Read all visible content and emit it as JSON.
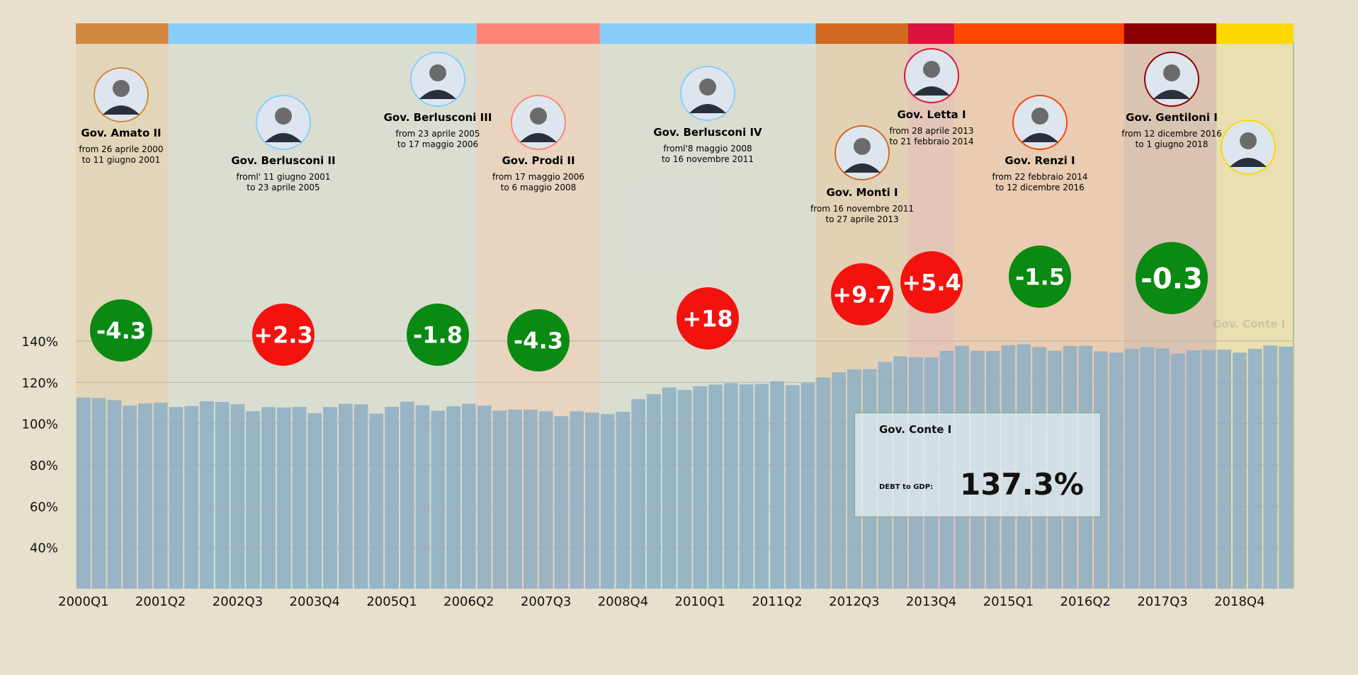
{
  "chart_data": {
    "type": "bar",
    "ylim": [
      20,
      150
    ],
    "yticks": [
      40,
      60,
      80,
      100,
      120,
      140
    ],
    "ytick_labels": [
      "40%",
      "60%",
      "80%",
      "100%",
      "120%",
      "140%"
    ],
    "xtick_labels": [
      "2000Q1",
      "2001Q2",
      "2002Q3",
      "2003Q4",
      "2005Q1",
      "2006Q2",
      "2007Q3",
      "2008Q4",
      "2010Q1",
      "2011Q2",
      "2012Q3",
      "2013Q4",
      "2015Q1",
      "2016Q2",
      "2017Q3",
      "2018Q4"
    ],
    "categories": [
      "2000Q1",
      "2000Q2",
      "2000Q3",
      "2000Q4",
      "2001Q1",
      "2001Q2",
      "2001Q3",
      "2001Q4",
      "2002Q1",
      "2002Q2",
      "2002Q3",
      "2002Q4",
      "2003Q1",
      "2003Q2",
      "2003Q3",
      "2003Q4",
      "2004Q1",
      "2004Q2",
      "2004Q3",
      "2004Q4",
      "2005Q1",
      "2005Q2",
      "2005Q3",
      "2005Q4",
      "2006Q1",
      "2006Q2",
      "2006Q3",
      "2006Q4",
      "2007Q1",
      "2007Q2",
      "2007Q3",
      "2007Q4",
      "2008Q1",
      "2008Q2",
      "2008Q3",
      "2008Q4",
      "2009Q1",
      "2009Q2",
      "2009Q3",
      "2009Q4",
      "2010Q1",
      "2010Q2",
      "2010Q3",
      "2010Q4",
      "2011Q1",
      "2011Q2",
      "2011Q3",
      "2011Q4",
      "2012Q1",
      "2012Q2",
      "2012Q3",
      "2012Q4",
      "2013Q1",
      "2013Q2",
      "2013Q3",
      "2013Q4",
      "2014Q1",
      "2014Q2",
      "2014Q3",
      "2014Q4",
      "2015Q1",
      "2015Q2",
      "2015Q3",
      "2015Q4",
      "2016Q1",
      "2016Q2",
      "2016Q3",
      "2016Q4",
      "2017Q1",
      "2017Q2",
      "2017Q3",
      "2017Q4",
      "2018Q1",
      "2018Q2",
      "2018Q3",
      "2018Q4",
      "2019Q1",
      "2019Q2",
      "2019Q3"
    ],
    "values": [
      112.6,
      112.4,
      111.4,
      108.7,
      109.8,
      110.1,
      108.0,
      108.5,
      110.8,
      110.5,
      109.4,
      106.0,
      108.0,
      107.8,
      108.1,
      105.1,
      108.0,
      109.6,
      109.3,
      104.8,
      108.1,
      110.6,
      108.9,
      106.2,
      108.4,
      109.6,
      108.7,
      106.3,
      106.8,
      106.8,
      105.9,
      103.6,
      105.9,
      105.3,
      104.6,
      105.7,
      111.8,
      114.3,
      117.5,
      116.3,
      118.1,
      118.9,
      119.6,
      119.0,
      119.2,
      120.5,
      118.6,
      119.7,
      122.4,
      124.9,
      126.3,
      126.4,
      129.9,
      132.6,
      132.2,
      132.1,
      135.2,
      137.7,
      135.3,
      135.2,
      138.0,
      138.4,
      137.1,
      135.3,
      137.6,
      137.7,
      135.0,
      134.4,
      136.2,
      137.1,
      136.4,
      133.9,
      135.5,
      135.7,
      135.8,
      134.4,
      136.2,
      137.8,
      137.3
    ],
    "bar_color": "#93b1c4"
  },
  "governments": [
    {
      "name": "Gov. Amato II",
      "from": "from 26 aprile 2000",
      "to": "to 11 giugno 2001",
      "start": 0,
      "end": 6,
      "color": "#d3883f",
      "delta": "-4.3",
      "delta_color": "#0a8a12"
    },
    {
      "name": "Gov. Berlusconi II",
      "from": "froml' 11 giugno 2001",
      "to": "to 23 aprile 2005",
      "start": 6,
      "end": 20,
      "color": "#87cefa",
      "delta": "+2.3",
      "delta_color": "#f4120e"
    },
    {
      "name": "Gov. Berlusconi III",
      "from": "from 23 aprile 2005",
      "to": "to 17 maggio 2006",
      "start": 20,
      "end": 26,
      "color": "#87cefa",
      "delta": "-1.8",
      "delta_color": "#0a8a12"
    },
    {
      "name": "Gov. Prodi II",
      "from": "from 17 maggio 2006",
      "to": "to 6 maggio 2008",
      "start": 26,
      "end": 34,
      "color": "#fc8577",
      "delta": "-4.3",
      "delta_color": "#0a8a12"
    },
    {
      "name": "Gov. Berlusconi IV",
      "from": "froml'8 maggio 2008",
      "to": "to 16 novembre 2011",
      "start": 34,
      "end": 48,
      "color": "#87cefa",
      "delta": "+18",
      "delta_color": "#f4120e"
    },
    {
      "name": "Gov. Monti I",
      "from": "from 16 novembre 2011",
      "to": "to 27 aprile 2013",
      "start": 48,
      "end": 54,
      "color": "#d2691e",
      "delta": "+9.7",
      "delta_color": "#f4120e"
    },
    {
      "name": "Gov. Letta I",
      "from": "from 28 aprile 2013",
      "to": "to 21 febbraio 2014",
      "start": 54,
      "end": 57,
      "color": "#dc143c",
      "delta": "+5.4",
      "delta_color": "#f4120e"
    },
    {
      "name": "Gov. Renzi I",
      "from": "from 22 febbraio 2014",
      "to": "to 12 dicembre 2016",
      "start": 57,
      "end": 68,
      "color": "#ff4500",
      "delta": "-1.5",
      "delta_color": "#0a8a12"
    },
    {
      "name": "Gov. Gentiloni I",
      "from": "from 12 dicembre 2016",
      "to": "to 1 giugno 2018",
      "start": 68,
      "end": 74,
      "color": "#8b0000",
      "delta": "-0.3",
      "delta_color": "#0a8a12"
    },
    {
      "name": "",
      "from": "",
      "to": "",
      "start": 74,
      "end": 79,
      "color": "#ffd700",
      "delta": "",
      "delta_color": ""
    }
  ],
  "info_box": {
    "government": "Gov. Conte I",
    "label": "DEBT to GDP:",
    "value": "137.3%"
  },
  "ghost_label": "Gov. Conte I"
}
